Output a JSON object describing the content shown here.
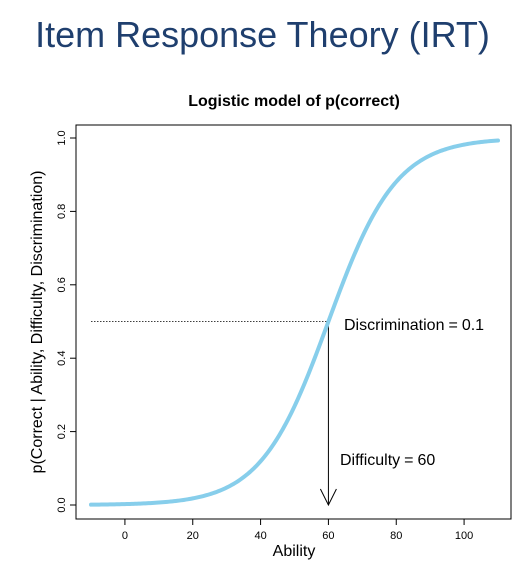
{
  "slide": {
    "title": "Item Response Theory (IRT)"
  },
  "chart_data": {
    "type": "line",
    "title": "Logistic model of p(correct)",
    "xlabel": "Ability",
    "ylabel": "p(Correct | Ability, Difficulty, Discrimination)",
    "xlim": [
      -10,
      110
    ],
    "ylim": [
      0,
      1
    ],
    "x_ticks": [
      0,
      20,
      40,
      60,
      80,
      100
    ],
    "y_ticks": [
      0.0,
      0.2,
      0.4,
      0.6,
      0.8,
      1.0
    ],
    "y_tick_labels": [
      "0.0",
      "0.2",
      "0.4",
      "0.6",
      "0.8",
      "1.0"
    ],
    "series": [
      {
        "color": "#87ceeb",
        "function": "logistic",
        "difficulty": 60,
        "discrimination": 0.1,
        "x_range": [
          -10,
          110
        ]
      }
    ],
    "annotations": {
      "discrimination": {
        "label": "Discrimination",
        "op": "=",
        "value": "0.1"
      },
      "difficulty": {
        "label": "Difficulty",
        "op": "=",
        "value": "60"
      }
    },
    "reference_lines": {
      "hline_y": 0.5,
      "vline_x": 60
    },
    "grid": false
  }
}
